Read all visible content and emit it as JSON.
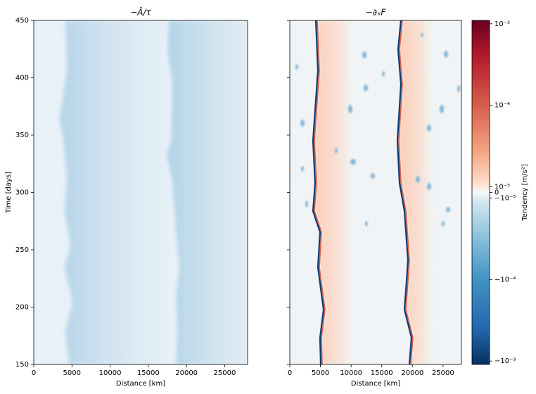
{
  "chart_data": [
    {
      "type": "heatmap",
      "title": "−Â/τ",
      "xlabel": "Distance [km]",
      "ylabel": "Time [days]",
      "xlim": [
        0,
        28000
      ],
      "ylim": [
        150,
        450
      ],
      "xticks": [
        0,
        5000,
        10000,
        15000,
        20000,
        25000
      ],
      "yticks": [
        150,
        200,
        250,
        300,
        350,
        400,
        450
      ],
      "show_yticklabels": true
    },
    {
      "type": "heatmap",
      "title": "−∂ₓF",
      "xlabel": "Distance [km]",
      "xlim": [
        0,
        28000
      ],
      "ylim": [
        150,
        450
      ],
      "xticks": [
        0,
        5000,
        10000,
        15000,
        20000,
        25000
      ],
      "yticks": [
        150,
        200,
        250,
        300,
        350,
        400,
        450
      ],
      "show_yticklabels": false,
      "colorbar": {
        "label": "Tendency [m/s²]",
        "scale": "symlog",
        "linthresh": 1e-05,
        "lim": [
          -0.0011,
          0.0011
        ],
        "ticks": [
          {
            "value": -0.001,
            "label": "−10⁻³"
          },
          {
            "value": -0.0001,
            "label": "−10⁻⁴"
          },
          {
            "value": -1e-05,
            "label": "−10⁻⁵"
          },
          0,
          {
            "value": 1e-05,
            "label": "10⁻⁵"
          },
          {
            "value": 0.0001,
            "label": "10⁻⁴"
          },
          {
            "value": 0.001,
            "label": "10⁻³"
          }
        ]
      }
    }
  ]
}
